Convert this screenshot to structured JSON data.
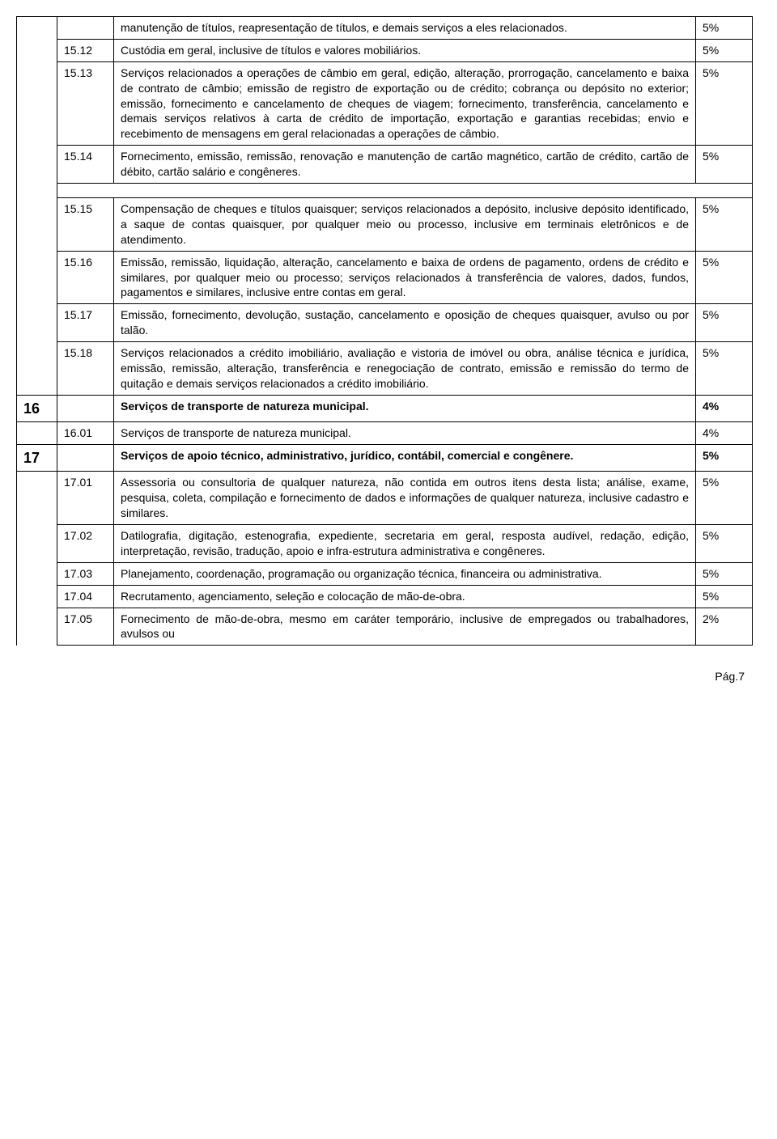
{
  "rows": [
    {
      "section": "",
      "code": "",
      "desc": "manutenção de títulos, reapresentação de títulos, e demais serviços a eles relacionados.",
      "rate": "5%",
      "bold": false
    },
    {
      "section": "",
      "code": "15.12",
      "desc": "Custódia em geral, inclusive de títulos e valores mobiliários.",
      "rate": "5%",
      "bold": false
    },
    {
      "section": "",
      "code": "15.13",
      "desc": "Serviços relacionados a operações de câmbio em geral, edição, alteração, prorrogação, cancelamento e baixa de contrato de câmbio; emissão de registro de exportação ou de crédito; cobrança ou depósito no exterior; emissão, fornecimento e cancelamento de cheques de viagem; fornecimento, transferência, cancelamento e demais serviços relativos à carta de crédito de importação, exportação e garantias recebidas; envio e recebimento de mensagens em geral relacionadas a operações de câmbio.",
      "rate": "5%",
      "bold": false
    },
    {
      "section": "",
      "code": "15.14",
      "desc": "Fornecimento, emissão, remissão, renovação e manutenção de cartão magnético, cartão de crédito, cartão de débito, cartão salário e congêneres.",
      "rate": "5%",
      "bold": false
    },
    {
      "section": "",
      "code": "15.15",
      "desc": "Compensação de cheques e títulos quaisquer; serviços relacionados a depósito, inclusive depósito identificado, a saque de contas quaisquer, por qualquer meio ou processo, inclusive em terminais eletrônicos e de atendimento.",
      "rate": "5%",
      "bold": false,
      "gapBefore": true
    },
    {
      "section": "",
      "code": "15.16",
      "desc": "Emissão, remissão, liquidação, alteração, cancelamento e baixa de ordens de pagamento, ordens de crédito e similares, por qualquer meio ou processo; serviços relacionados à transferência de valores, dados, fundos, pagamentos e similares, inclusive entre contas em geral.",
      "rate": "5%",
      "bold": false
    },
    {
      "section": "",
      "code": "15.17",
      "desc": "Emissão, fornecimento, devolução, sustação, cancelamento e oposição de cheques quaisquer, avulso ou por talão.",
      "rate": "5%",
      "bold": false
    },
    {
      "section": "",
      "code": "15.18",
      "desc": "Serviços relacionados a crédito imobiliário, avaliação e vistoria de imóvel ou obra, análise técnica e jurídica, emissão, remissão, alteração, transferência e renegociação de contrato, emissão e remissão do termo de quitação e demais serviços relacionados a crédito imobiliário.",
      "rate": "5%",
      "bold": false
    },
    {
      "section": "16",
      "code": "",
      "desc": "Serviços de transporte de natureza municipal.",
      "rate": "4%",
      "bold": true
    },
    {
      "section": "",
      "code": "16.01",
      "desc": "Serviços de transporte de natureza municipal.",
      "rate": "4%",
      "bold": false
    },
    {
      "section": "17",
      "code": "",
      "desc": "Serviços de apoio técnico, administrativo, jurídico, contábil, comercial e congênere.",
      "rate": "5%",
      "bold": true
    },
    {
      "section": "",
      "code": "17.01",
      "desc": "Assessoria ou consultoria de qualquer natureza, não contida em outros itens desta lista; análise, exame, pesquisa, coleta, compilação e fornecimento de dados e informações de qualquer natureza, inclusive cadastro e similares.",
      "rate": "5%",
      "bold": false
    },
    {
      "section": "",
      "code": "17.02",
      "desc": "Datilografia, digitação, estenografia, expediente, secretaria em geral, resposta audível, redação, edição, interpretação, revisão, tradução, apoio e infra-estrutura administrativa e congêneres.",
      "rate": "5%",
      "bold": false
    },
    {
      "section": "",
      "code": "17.03",
      "desc": "Planejamento, coordenação, programação ou organização técnica, financeira ou administrativa.",
      "rate": "5%",
      "bold": false
    },
    {
      "section": "",
      "code": "17.04",
      "desc": "Recrutamento, agenciamento, seleção e colocação de mão-de-obra.",
      "rate": "5%",
      "bold": false
    },
    {
      "section": "",
      "code": "17.05",
      "desc": "Fornecimento de mão-de-obra, mesmo em caráter temporário, inclusive de empregados ou trabalhadores, avulsos ou",
      "rate": "2%",
      "bold": false
    }
  ],
  "footer": "Pág.7",
  "colors": {
    "border": "#000000",
    "text": "#000000",
    "background": "#ffffff"
  },
  "typography": {
    "body_fontsize": 14,
    "section_fontsize": 18
  }
}
